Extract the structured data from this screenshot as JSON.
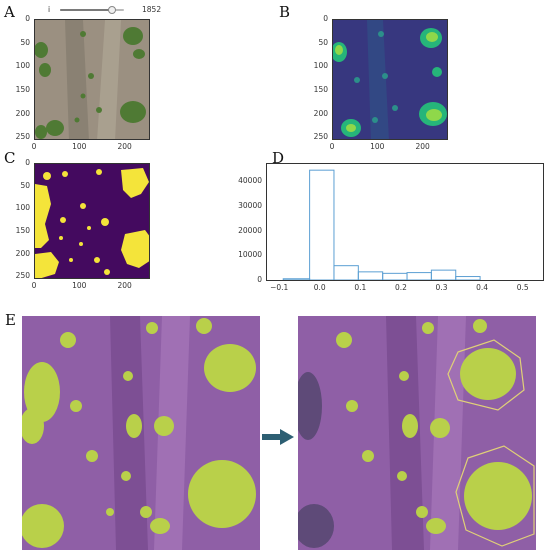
{
  "toolbar": {
    "slider_left_label": "i",
    "slider_value_label": "1852",
    "slider_fraction": 0.82
  },
  "panels": {
    "A": {
      "letter": "A",
      "y_ticks": [
        "0",
        "50",
        "100",
        "150",
        "200",
        "250"
      ],
      "x_ticks": [
        "0",
        "100",
        "200"
      ]
    },
    "B": {
      "letter": "B",
      "y_ticks": [
        "0",
        "50",
        "100",
        "150",
        "200",
        "250"
      ],
      "x_ticks": [
        "0",
        "100",
        "200"
      ]
    },
    "C": {
      "letter": "C",
      "y_ticks": [
        "0",
        "50",
        "100",
        "150",
        "200",
        "250"
      ],
      "x_ticks": [
        "0",
        "100",
        "200"
      ]
    },
    "D": {
      "letter": "D"
    },
    "E": {
      "letter": "E"
    }
  },
  "colors": {
    "soil": "#9b9081",
    "viridis_dark": "#3b2a78",
    "viridis_yellow": "#f4e43a",
    "plant_green": "#b9d04a",
    "mask_purple": "#8f5fa6",
    "hist_line": "#5b9fd3",
    "arrow": "#2d5f73",
    "hull": "#e0d078"
  },
  "icons": {
    "arrow": "right-arrow-icon"
  },
  "chart_data": {
    "type": "bar",
    "title": "",
    "xlabel": "",
    "ylabel": "",
    "bin_edges": [
      -0.09,
      -0.025,
      0.035,
      0.095,
      0.155,
      0.215,
      0.275,
      0.335,
      0.395
    ],
    "values": [
      500,
      44500,
      5800,
      3300,
      2700,
      3000,
      4000,
      1400
    ],
    "xlim": [
      -0.13,
      0.55
    ],
    "ylim": [
      0,
      47000
    ],
    "x_ticks": [
      -0.1,
      0.0,
      0.1,
      0.2,
      0.3,
      0.4,
      0.5
    ],
    "x_tick_labels": [
      "−0.1",
      "0.0",
      "0.1",
      "0.2",
      "0.3",
      "0.4",
      "0.5"
    ],
    "y_ticks": [
      0,
      10000,
      20000,
      30000,
      40000
    ],
    "y_tick_labels": [
      "0",
      "10000",
      "20000",
      "30000",
      "40000"
    ],
    "grid": false,
    "legend": "none"
  }
}
